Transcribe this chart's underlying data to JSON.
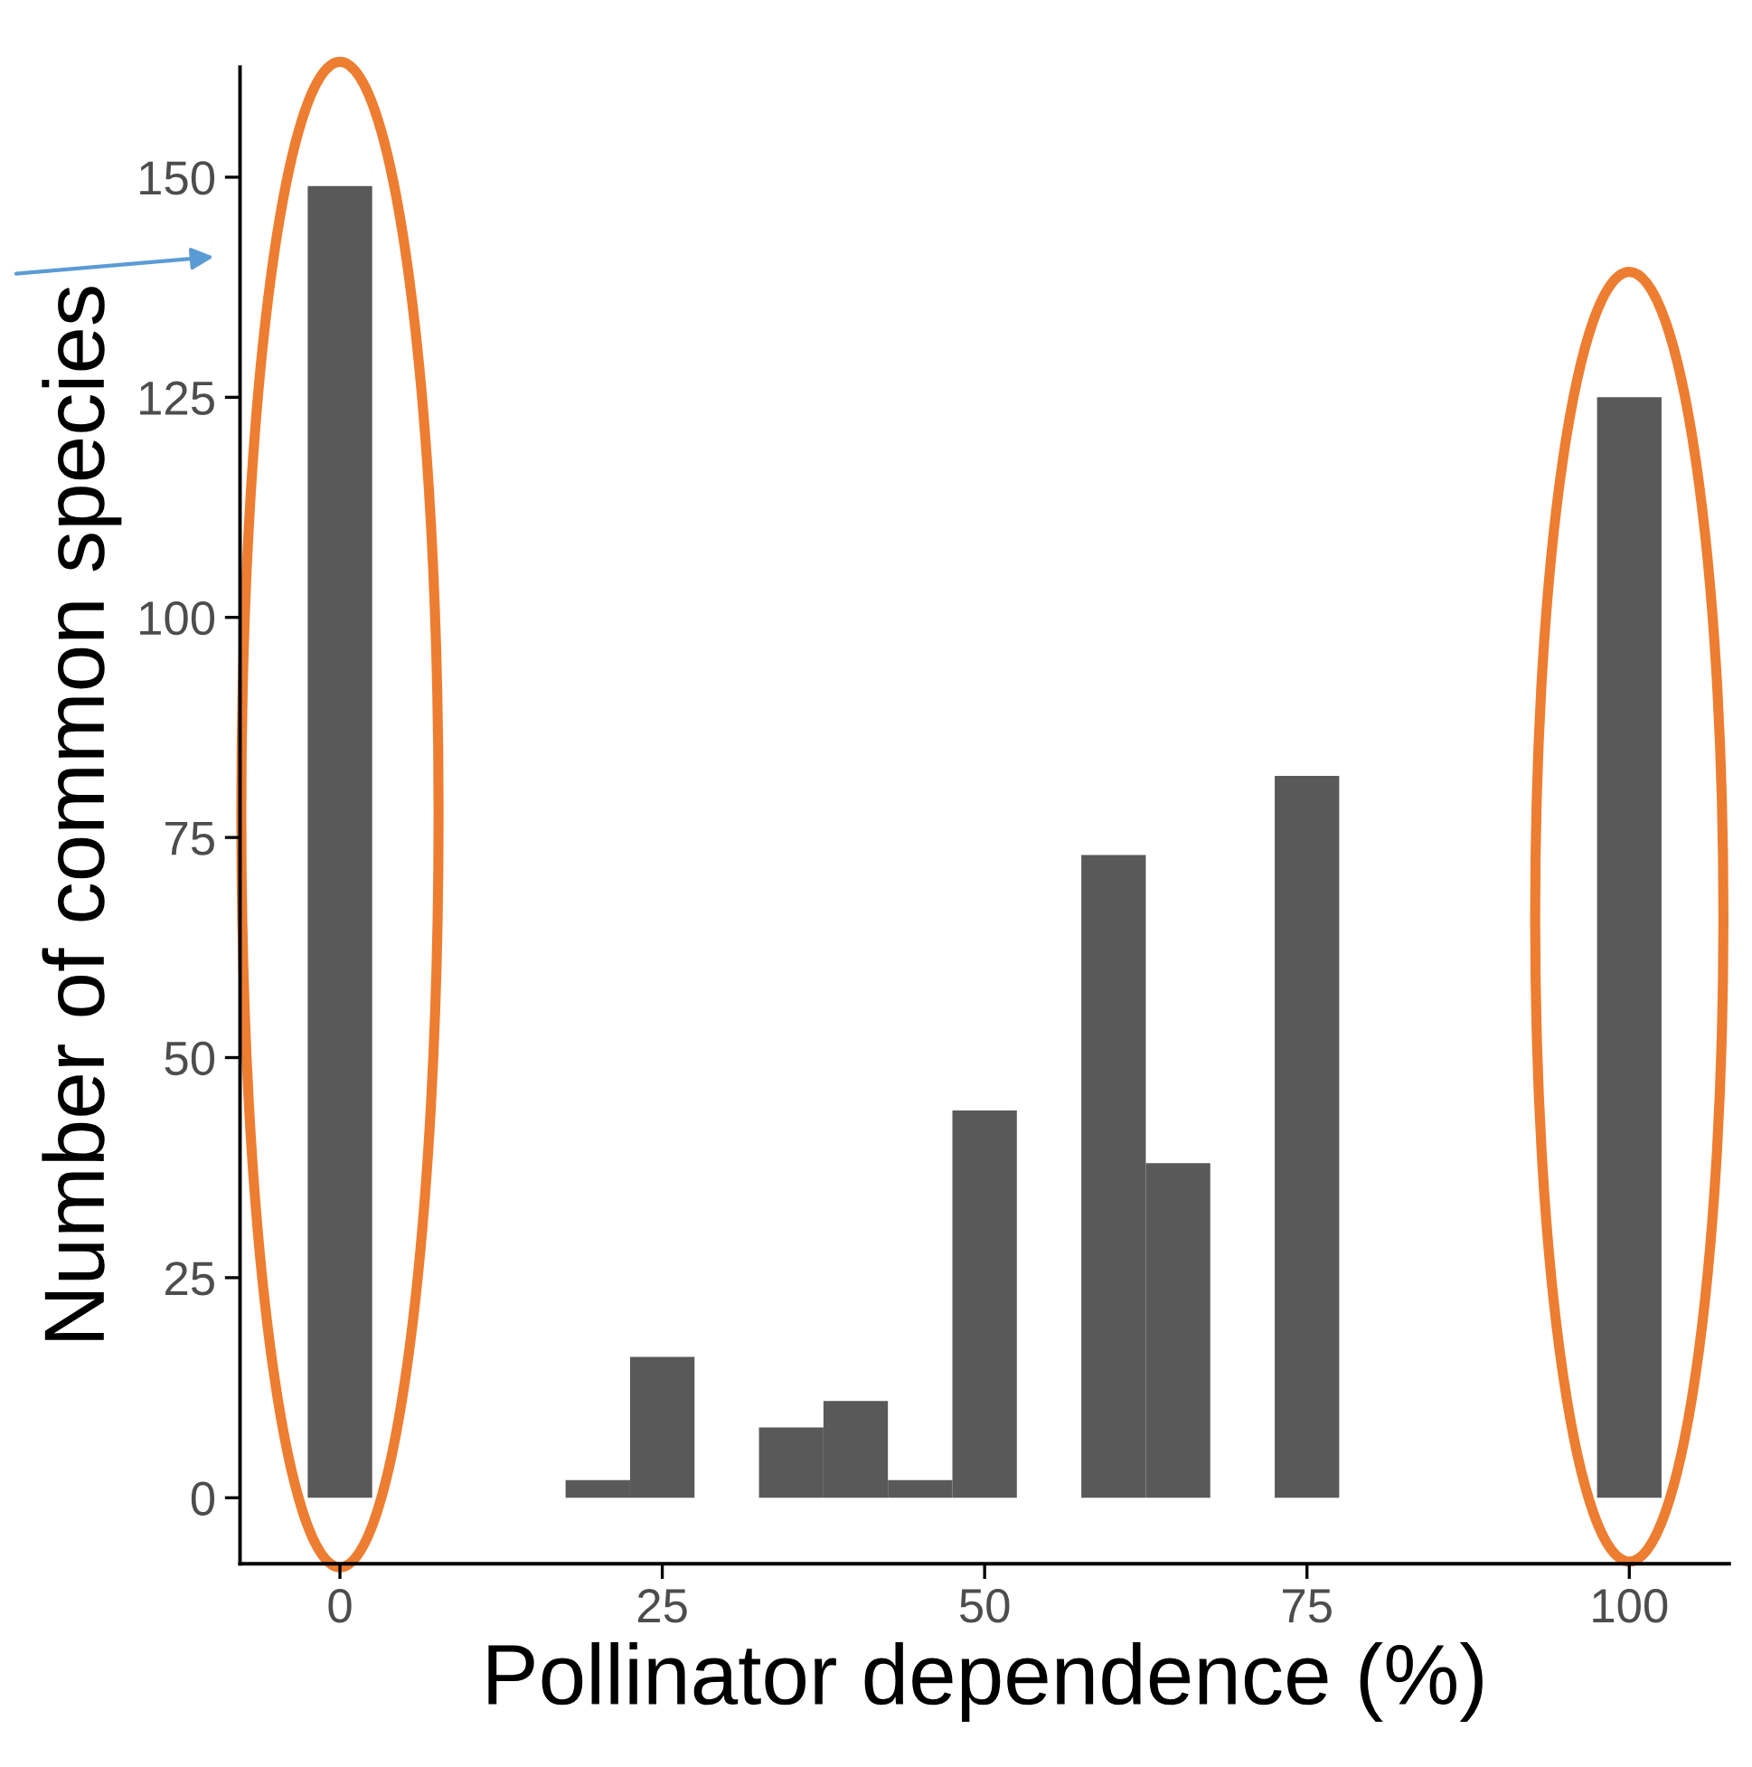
{
  "chart_data": {
    "type": "histogram",
    "xlabel": "Pollinator dependence (%)",
    "ylabel": "Number of common species",
    "bins": [
      -2.5,
      2.5,
      7.5,
      12.5,
      17.5,
      22.5,
      27.5,
      32.5,
      37.5,
      42.5,
      47.5,
      52.5,
      57.5,
      62.5,
      67.5,
      72.5,
      77.5,
      82.5,
      87.5,
      92.5,
      97.5,
      102.5
    ],
    "values": [
      149,
      0,
      0,
      0,
      2,
      16,
      0,
      8,
      11,
      2,
      44,
      0,
      73,
      38,
      0,
      82,
      0,
      0,
      0,
      0,
      125
    ],
    "color": "#595959",
    "xlim": [
      -7.75,
      107.75
    ],
    "ylim": [
      -7.5,
      162.5
    ],
    "xticks": [
      0,
      25,
      50,
      75,
      100
    ],
    "yticks": [
      0,
      25,
      50,
      75,
      100,
      125,
      150
    ],
    "grid": false
  }
}
